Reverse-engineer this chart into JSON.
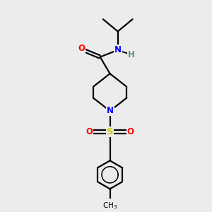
{
  "background_color": "#ececec",
  "bond_color": "#000000",
  "atom_colors": {
    "O": "#ff0000",
    "N": "#0000ff",
    "S": "#cccc00",
    "H": "#4a9090",
    "C": "#000000"
  },
  "figsize": [
    3.0,
    3.0
  ],
  "dpi": 100
}
